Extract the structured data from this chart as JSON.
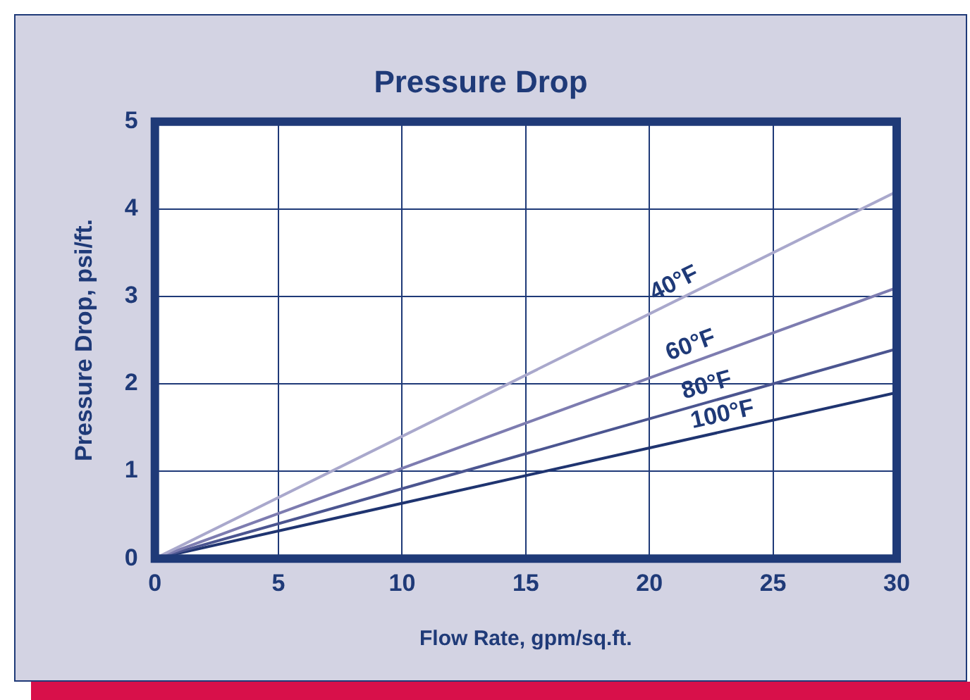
{
  "chart_data": {
    "type": "line",
    "title": "Pressure Drop",
    "xlabel": "Flow Rate, gpm/sq.ft.",
    "ylabel": "Pressure Drop, psi/ft.",
    "x": [
      0,
      30
    ],
    "series": [
      {
        "name": "40°F",
        "color": "#a9a8cc",
        "values": [
          0,
          4.2
        ]
      },
      {
        "name": "60°F",
        "color": "#7d7cb0",
        "values": [
          0,
          3.1
        ]
      },
      {
        "name": "80°F",
        "color": "#4b5590",
        "values": [
          0,
          2.4
        ]
      },
      {
        "name": "100°F",
        "color": "#1f3470",
        "values": [
          0,
          1.9
        ]
      }
    ],
    "xlim": [
      0,
      30
    ],
    "xticks": [
      0,
      5,
      10,
      15,
      20,
      25,
      30
    ],
    "ylim": [
      0,
      5
    ],
    "yticks": [
      0,
      1,
      2,
      3,
      4,
      5
    ],
    "grid": true,
    "legend": false,
    "marker": "none",
    "line_style": "solid"
  }
}
